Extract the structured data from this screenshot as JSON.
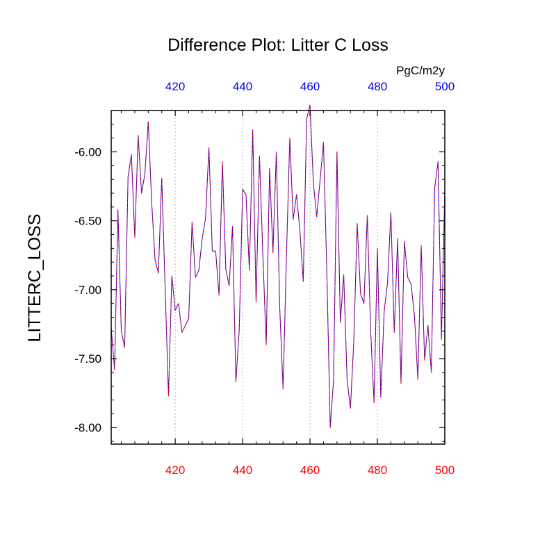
{
  "chart_data": {
    "type": "line",
    "title": "Difference Plot: Litter C Loss",
    "units": "PgC/m2y",
    "ylabel": "LITTERC_LOSS",
    "xlabel": "",
    "xlim": [
      401,
      500
    ],
    "ylim": [
      -8.12,
      -5.7
    ],
    "x_ticks": [
      420,
      440,
      460,
      480,
      500
    ],
    "x_tick_labels": [
      "420",
      "440",
      "460",
      "480",
      "500"
    ],
    "y_ticks": [
      -8.0,
      -7.5,
      -7.0,
      -6.5,
      -6.0
    ],
    "y_tick_labels": [
      "-8.00",
      "-7.50",
      "-7.00",
      "-6.50",
      "-6.00"
    ],
    "gridlines": "vertical dotted at x ticks",
    "colors": {
      "bottom_axis_labels": "#ff0000",
      "top_axis_labels": "#0000ff",
      "series_a": "#0000ff",
      "series_b": "#ff0000",
      "axes": "#000000",
      "grid": "#b4b4b4"
    },
    "series": [
      {
        "name": "series_a",
        "style": "solid",
        "x": [
          401,
          402,
          403,
          404,
          405,
          406,
          407,
          408,
          409,
          410,
          411,
          412,
          413,
          414,
          415,
          416,
          417,
          418,
          419,
          420,
          421,
          422,
          423,
          424,
          425,
          426,
          427,
          428,
          429,
          430,
          431,
          432,
          433,
          434,
          435,
          436,
          437,
          438,
          439,
          440,
          441,
          442,
          443,
          444,
          445,
          446,
          447,
          448,
          449,
          450,
          451,
          452,
          453,
          454,
          455,
          456,
          457,
          458,
          459,
          460,
          461,
          462,
          463,
          464,
          465,
          466,
          467,
          468,
          469,
          470,
          471,
          472,
          473,
          474,
          475,
          476,
          477,
          478,
          479,
          480,
          481,
          482,
          483,
          484,
          485,
          486,
          487,
          488,
          489,
          490,
          491,
          492,
          493,
          494,
          495,
          496,
          497,
          498,
          499,
          500
        ],
        "values": [
          -7.28,
          -7.58,
          -6.42,
          -7.3,
          -7.42,
          -6.18,
          -6.02,
          -6.62,
          -5.88,
          -6.3,
          -6.16,
          -5.78,
          -6.36,
          -6.78,
          -6.88,
          -6.19,
          -6.98,
          -7.77,
          -6.9,
          -7.15,
          -7.1,
          -7.31,
          -7.26,
          -7.21,
          -6.51,
          -6.91,
          -6.86,
          -6.63,
          -6.48,
          -5.97,
          -6.72,
          -6.72,
          -7.04,
          -6.07,
          -6.85,
          -6.97,
          -6.54,
          -7.67,
          -7.29,
          -6.27,
          -6.31,
          -6.86,
          -5.84,
          -7.09,
          -6.03,
          -6.74,
          -7.4,
          -6.12,
          -6.73,
          -6.0,
          -7.12,
          -7.72,
          -6.76,
          -5.9,
          -6.49,
          -6.31,
          -6.57,
          -6.94,
          -5.76,
          -5.66,
          -6.23,
          -6.47,
          -6.2,
          -5.93,
          -6.88,
          -8.0,
          -7.65,
          -6.0,
          -7.24,
          -6.89,
          -7.65,
          -7.86,
          -7.37,
          -6.52,
          -7.03,
          -7.1,
          -6.46,
          -7.3,
          -7.82,
          -6.7,
          -7.78,
          -7.16,
          -6.95,
          -6.44,
          -7.31,
          -6.63,
          -7.68,
          -6.65,
          -6.91,
          -6.96,
          -7.19,
          -7.65,
          -6.68,
          -7.51,
          -7.26,
          -7.6,
          -6.26,
          -6.07,
          -7.36,
          -6.29
        ]
      },
      {
        "name": "series_b",
        "style": "dashed",
        "x": [
          401,
          402,
          403,
          404,
          405,
          406,
          407,
          408,
          409,
          410,
          411,
          412,
          413,
          414,
          415,
          416,
          417,
          418,
          419,
          420,
          421,
          422,
          423,
          424,
          425,
          426,
          427,
          428,
          429,
          430,
          431,
          432,
          433,
          434,
          435,
          436,
          437,
          438,
          439,
          440,
          441,
          442,
          443,
          444,
          445,
          446,
          447,
          448,
          449,
          450,
          451,
          452,
          453,
          454,
          455,
          456,
          457,
          458,
          459,
          460,
          461,
          462,
          463,
          464,
          465,
          466,
          467,
          468,
          469,
          470,
          471,
          472,
          473,
          474,
          475,
          476,
          477,
          478,
          479,
          480,
          481,
          482,
          483,
          484,
          485,
          486,
          487,
          488,
          489,
          490,
          491,
          492,
          493,
          494,
          495,
          496,
          497,
          498,
          499,
          500
        ],
        "values": [
          -7.28,
          -7.58,
          -6.42,
          -7.3,
          -7.42,
          -6.18,
          -6.02,
          -6.62,
          -5.88,
          -6.3,
          -6.16,
          -5.78,
          -6.36,
          -6.78,
          -6.88,
          -6.19,
          -6.98,
          -7.77,
          -6.9,
          -7.15,
          -7.1,
          -7.31,
          -7.26,
          -7.21,
          -6.51,
          -6.91,
          -6.86,
          -6.63,
          -6.48,
          -5.97,
          -6.72,
          -6.72,
          -7.04,
          -6.07,
          -6.85,
          -6.97,
          -6.54,
          -7.67,
          -7.29,
          -6.27,
          -6.31,
          -6.86,
          -5.84,
          -7.09,
          -6.03,
          -6.74,
          -7.4,
          -6.12,
          -6.73,
          -6.0,
          -7.12,
          -7.72,
          -6.76,
          -5.9,
          -6.49,
          -6.31,
          -6.57,
          -6.94,
          -5.76,
          -5.66,
          -6.23,
          -6.47,
          -6.2,
          -5.93,
          -6.88,
          -8.0,
          -7.65,
          -6.0,
          -7.24,
          -6.89,
          -7.65,
          -7.86,
          -7.37,
          -6.52,
          -7.03,
          -7.1,
          -6.46,
          -7.3,
          -7.82,
          -6.7,
          -7.78,
          -7.16,
          -6.95,
          -6.44,
          -7.31,
          -6.63,
          -7.68,
          -6.65,
          -6.91,
          -6.96,
          -7.19,
          -7.65,
          -6.68,
          -7.51,
          -7.26,
          -7.6,
          -6.26,
          -6.07,
          -7.36,
          -6.29
        ]
      }
    ]
  }
}
